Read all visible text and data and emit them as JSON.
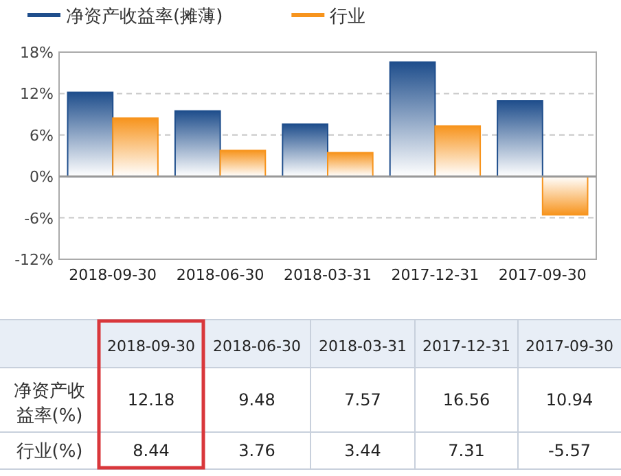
{
  "chart_data": {
    "type": "bar",
    "categories": [
      "2018-09-30",
      "2018-06-30",
      "2018-03-31",
      "2017-12-31",
      "2017-09-30"
    ],
    "series": [
      {
        "name": "净资产收益率(摊薄)",
        "color": "#1f4e8c",
        "values": [
          12.18,
          9.48,
          7.57,
          16.56,
          10.94
        ]
      },
      {
        "name": "行业",
        "color": "#f7941d",
        "values": [
          8.44,
          3.76,
          3.44,
          7.31,
          -5.57
        ]
      }
    ],
    "ylim": [
      -12,
      18
    ],
    "yticks": [
      {
        "value": -12,
        "label": "-12%"
      },
      {
        "value": -6,
        "label": "-6%"
      },
      {
        "value": 0,
        "label": "0%"
      },
      {
        "value": 6,
        "label": "6%"
      },
      {
        "value": 12,
        "label": "12%"
      },
      {
        "value": 18,
        "label": "18%"
      }
    ],
    "grid": "y",
    "legend": "top left",
    "data_labels": true,
    "annotations": [
      "净资产收益率(%)",
      "行业(%)"
    ]
  }
}
